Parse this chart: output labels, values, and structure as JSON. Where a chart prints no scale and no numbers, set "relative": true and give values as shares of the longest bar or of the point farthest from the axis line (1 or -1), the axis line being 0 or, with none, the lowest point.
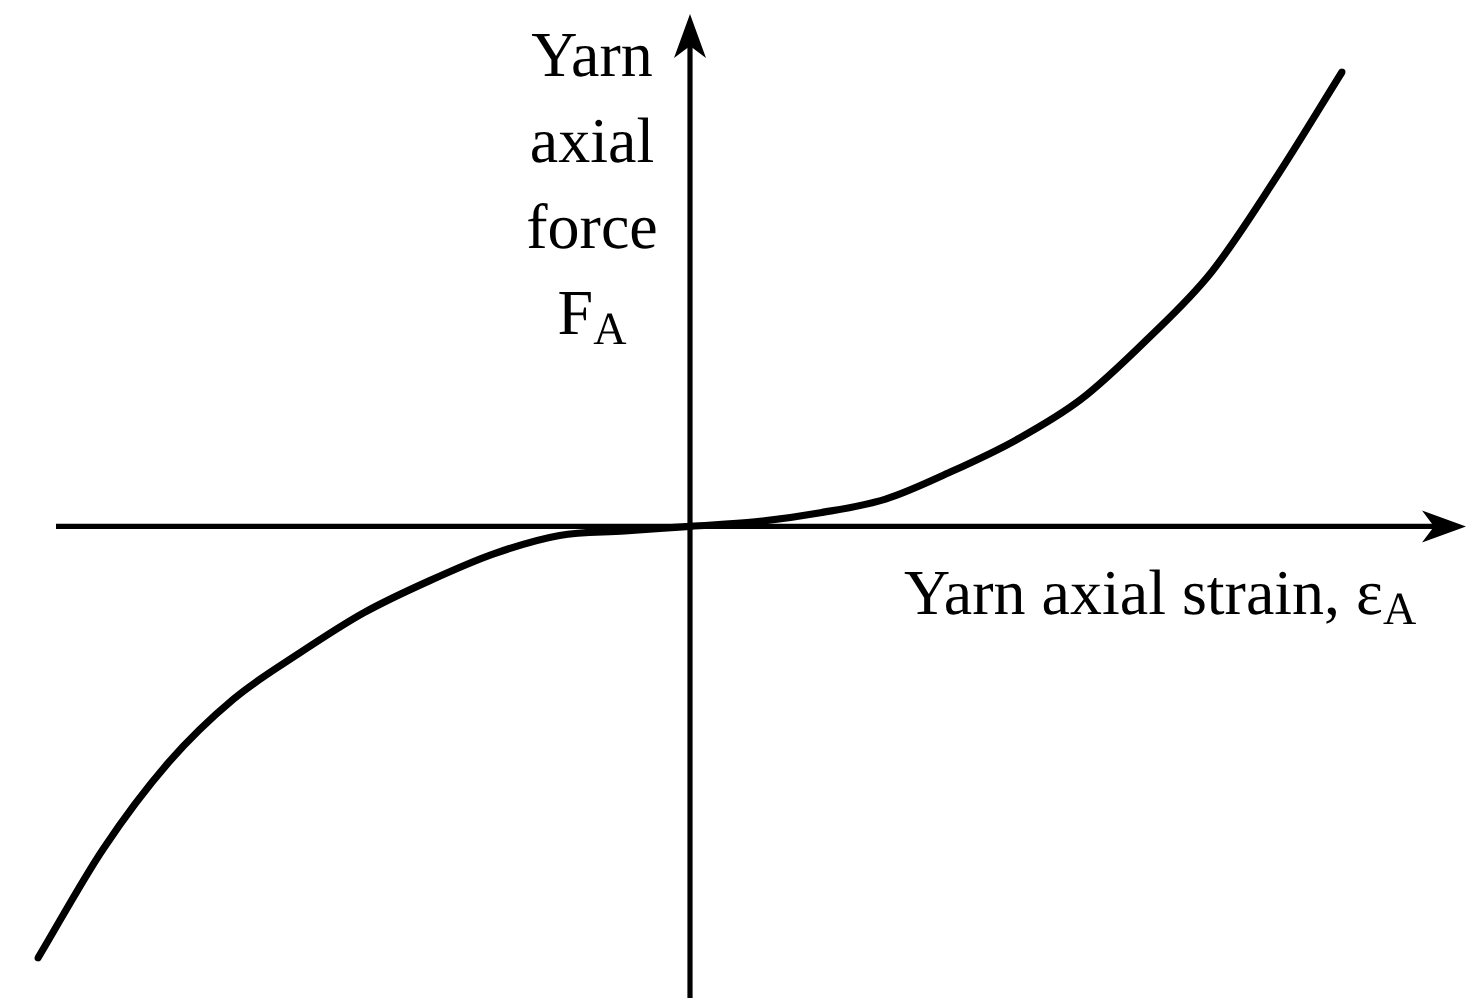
{
  "chart_data": {
    "type": "line",
    "relative": true,
    "xlabel": "Yarn axial strain, ε$_{A}$",
    "ylabel": "Yarn axial force F$_{A}$",
    "categories": [
      null,
      null,
      null,
      null,
      null,
      null,
      null,
      null,
      null,
      null,
      null,
      null,
      null,
      null,
      null,
      null,
      null,
      null,
      null,
      null,
      null
    ],
    "series": [
      {
        "color": "#000000",
        "values": [
          -0.95,
          -0.71,
          -0.52,
          -0.38,
          -0.28,
          -0.19,
          -0.12,
          -0.06,
          -0.02,
          -0.01,
          0,
          0.01,
          0.03,
          0.06,
          0.12,
          0.19,
          0.28,
          0.41,
          0.56,
          0.77,
          1
        ]
      }
    ]
  }
}
